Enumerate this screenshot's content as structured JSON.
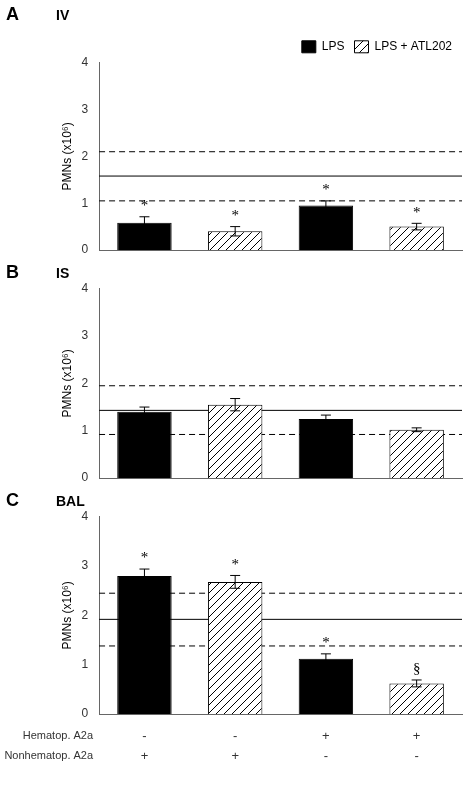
{
  "chart_data": [
    {
      "type": "bar",
      "panel_label": "A",
      "title": "IV",
      "ylabel": "PMNs (x10⁶)",
      "categories": [
        null,
        null,
        null,
        null
      ],
      "series": [
        {
          "name": "LPS",
          "color": "#000000",
          "values": [
            0.58,
            null,
            0.95,
            null
          ],
          "errors": [
            0.13,
            null,
            0.1,
            null
          ]
        },
        {
          "name": "LPS + ATL202",
          "color": "#ffffff",
          "values": [
            null,
            0.4,
            null,
            0.5
          ],
          "errors": [
            null,
            0.1,
            null,
            0.07
          ]
        }
      ],
      "annotations": [
        {
          "text": "*",
          "index": 0
        },
        {
          "text": "*",
          "index": 1
        },
        {
          "text": "*",
          "index": 2
        },
        {
          "text": "*",
          "index": 3
        }
      ],
      "ref_lines": [
        {
          "y": 1.05,
          "line_style": "dashed"
        },
        {
          "y": 1.58,
          "line_style": "solid"
        },
        {
          "y": 2.1,
          "line_style": "dashed"
        }
      ],
      "ylim": [
        0,
        4
      ],
      "yticks": [
        0,
        1,
        2,
        3,
        4
      ],
      "grid": false,
      "legend": "top",
      "tick_labels": "y"
    },
    {
      "type": "bar",
      "panel_label": "B",
      "title": "IS",
      "ylabel": "PMNs (x10⁶)",
      "categories": [
        null,
        null,
        null,
        null
      ],
      "series": [
        {
          "name": "LPS",
          "color": "#000000",
          "values": [
            1.4,
            null,
            1.25,
            null
          ],
          "errors": [
            0.1,
            null,
            0.08,
            null
          ]
        },
        {
          "name": "LPS + ATL202",
          "color": "#ffffff",
          "values": [
            null,
            1.55,
            null,
            1.02
          ],
          "errors": [
            null,
            0.13,
            null,
            0.04
          ]
        }
      ],
      "annotations": [],
      "ref_lines": [
        {
          "y": 0.92,
          "line_style": "dashed"
        },
        {
          "y": 1.43,
          "line_style": "solid"
        },
        {
          "y": 1.95,
          "line_style": "dashed"
        }
      ],
      "ylim": [
        0,
        4
      ],
      "yticks": [
        0,
        1,
        2,
        3,
        4
      ],
      "grid": false,
      "tick_labels": "y"
    },
    {
      "type": "bar",
      "panel_label": "C",
      "title": "BAL",
      "ylabel": "PMNs (x10⁶)",
      "categories": [
        null,
        null,
        null,
        null
      ],
      "series": [
        {
          "name": "LPS",
          "color": "#000000",
          "values": [
            2.8,
            null,
            1.12,
            null
          ],
          "errors": [
            0.14,
            null,
            0.1,
            null
          ]
        },
        {
          "name": "LPS + ATL202",
          "color": "#ffffff",
          "values": [
            null,
            2.68,
            null,
            0.62
          ],
          "errors": [
            null,
            0.13,
            null,
            0.07
          ]
        }
      ],
      "annotations": [
        {
          "text": "*",
          "index": 0
        },
        {
          "text": "*",
          "index": 1
        },
        {
          "text": "*",
          "index": 2
        },
        {
          "text": "§",
          "index": 3
        }
      ],
      "ref_lines": [
        {
          "y": 1.38,
          "line_style": "dashed"
        },
        {
          "y": 1.92,
          "line_style": "solid"
        },
        {
          "y": 2.45,
          "line_style": "dashed"
        }
      ],
      "ylim": [
        0,
        4
      ],
      "yticks": [
        0,
        1,
        2,
        3,
        4
      ],
      "grid": false,
      "tick_labels": "y",
      "table": [
        {
          "row": "Hematop. A2a",
          "values": [
            "-",
            "-",
            "+",
            "+"
          ]
        },
        {
          "row": "Nonhematop. A2a",
          "values": [
            "+",
            "+",
            "-",
            "-"
          ]
        }
      ]
    }
  ]
}
